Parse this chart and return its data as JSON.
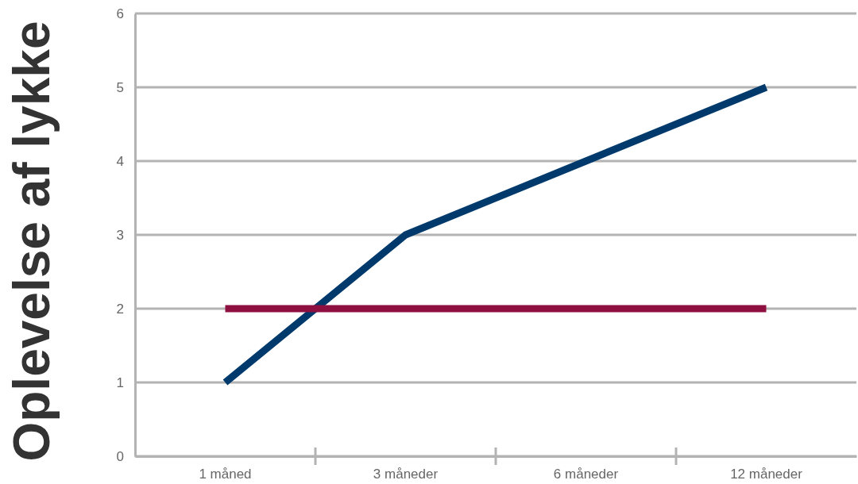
{
  "chart_data": {
    "type": "line",
    "ylabel": "Oplevelse af lykke",
    "categories": [
      "1 måned",
      "3 måneder",
      "6 måneder",
      "12 måneder"
    ],
    "series": [
      {
        "color": "#003a6c",
        "values": [
          1,
          3,
          4,
          5
        ]
      },
      {
        "color": "#8e1040",
        "values": [
          2,
          2,
          2,
          2
        ]
      }
    ],
    "ylim": [
      0,
      6
    ],
    "yticks": [
      0,
      1,
      2,
      3,
      4,
      5,
      6
    ],
    "grid": "y",
    "marker": "none",
    "line_style": "solid"
  }
}
